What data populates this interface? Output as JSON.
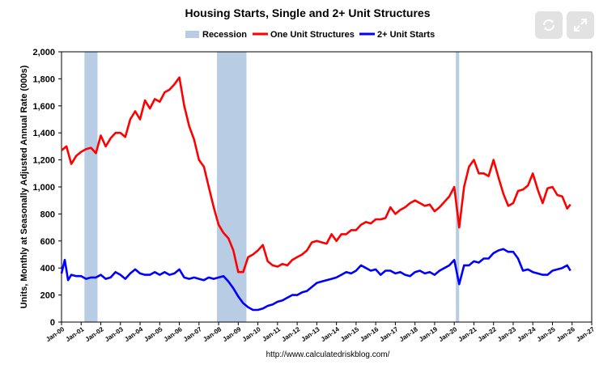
{
  "controls": {
    "refresh_icon": "refresh-icon",
    "expand_icon": "expand-icon"
  },
  "chart_data": {
    "type": "line",
    "title": "Housing Starts, Single and 2+ Unit Structures",
    "ylabel": "Units, Monthly at Seasonally Adjusted Annual Rate (000s)",
    "xlabel": "",
    "footer": "http://www.calculatedriskblog.com/",
    "ylim": [
      0,
      2000
    ],
    "yticks": [
      "0",
      "200",
      "400",
      "600",
      "800",
      "1,000",
      "1,200",
      "1,400",
      "1,600",
      "1,800",
      "2,000"
    ],
    "xticks": [
      "Jan-00",
      "Jan-01",
      "Jan-02",
      "Jan-03",
      "Jan-04",
      "Jan-05",
      "Jan-06",
      "Jan-07",
      "Jan-08",
      "Jan-09",
      "Jan-10",
      "Jan-11",
      "Jan-12",
      "Jan-13",
      "Jan-14",
      "Jan-15",
      "Jan-16",
      "Jan-17",
      "Jan-18",
      "Jan-19",
      "Jan-20",
      "Jan-21",
      "Jan-22",
      "Jan-23",
      "Jan-24",
      "Jan-25",
      "Jan-26",
      "Jan-27"
    ],
    "xlim": [
      "2000-01",
      "2027-01"
    ],
    "grid": false,
    "legend_position": "top",
    "legend": {
      "recession": "Recession",
      "one_unit": "One Unit Structures",
      "multi_unit": "2+ Unit Starts"
    },
    "colors": {
      "one_unit": "#ff0000",
      "multi_unit": "#0000ff",
      "recession": "#b8cce4"
    },
    "recessions": [
      {
        "start": "2001-03",
        "end": "2001-11"
      },
      {
        "start": "2007-12",
        "end": "2009-06"
      },
      {
        "start": "2020-02",
        "end": "2020-04"
      }
    ],
    "series": [
      {
        "key": "one_unit",
        "name": "One Unit Structures",
        "points": [
          [
            "2000-01",
            1270
          ],
          [
            "2000-04",
            1300
          ],
          [
            "2000-07",
            1170
          ],
          [
            "2000-10",
            1230
          ],
          [
            "2001-01",
            1260
          ],
          [
            "2001-04",
            1280
          ],
          [
            "2001-07",
            1290
          ],
          [
            "2001-10",
            1250
          ],
          [
            "2002-01",
            1380
          ],
          [
            "2002-04",
            1300
          ],
          [
            "2002-07",
            1360
          ],
          [
            "2002-10",
            1400
          ],
          [
            "2003-01",
            1400
          ],
          [
            "2003-04",
            1370
          ],
          [
            "2003-07",
            1500
          ],
          [
            "2003-10",
            1560
          ],
          [
            "2004-01",
            1500
          ],
          [
            "2004-04",
            1640
          ],
          [
            "2004-07",
            1580
          ],
          [
            "2004-10",
            1650
          ],
          [
            "2005-01",
            1630
          ],
          [
            "2005-04",
            1700
          ],
          [
            "2005-07",
            1720
          ],
          [
            "2005-10",
            1760
          ],
          [
            "2006-01",
            1810
          ],
          [
            "2006-04",
            1600
          ],
          [
            "2006-07",
            1450
          ],
          [
            "2006-10",
            1350
          ],
          [
            "2007-01",
            1200
          ],
          [
            "2007-04",
            1150
          ],
          [
            "2007-07",
            1000
          ],
          [
            "2007-10",
            850
          ],
          [
            "2008-01",
            720
          ],
          [
            "2008-04",
            660
          ],
          [
            "2008-07",
            620
          ],
          [
            "2008-10",
            530
          ],
          [
            "2009-01",
            370
          ],
          [
            "2009-04",
            370
          ],
          [
            "2009-07",
            480
          ],
          [
            "2009-10",
            500
          ],
          [
            "2010-01",
            530
          ],
          [
            "2010-04",
            570
          ],
          [
            "2010-07",
            450
          ],
          [
            "2010-10",
            420
          ],
          [
            "2011-01",
            410
          ],
          [
            "2011-04",
            430
          ],
          [
            "2011-07",
            420
          ],
          [
            "2011-10",
            460
          ],
          [
            "2012-01",
            480
          ],
          [
            "2012-04",
            500
          ],
          [
            "2012-07",
            530
          ],
          [
            "2012-10",
            590
          ],
          [
            "2013-01",
            600
          ],
          [
            "2013-04",
            590
          ],
          [
            "2013-07",
            580
          ],
          [
            "2013-10",
            650
          ],
          [
            "2014-01",
            600
          ],
          [
            "2014-04",
            650
          ],
          [
            "2014-07",
            650
          ],
          [
            "2014-10",
            680
          ],
          [
            "2015-01",
            680
          ],
          [
            "2015-04",
            720
          ],
          [
            "2015-07",
            740
          ],
          [
            "2015-10",
            730
          ],
          [
            "2016-01",
            760
          ],
          [
            "2016-04",
            760
          ],
          [
            "2016-07",
            770
          ],
          [
            "2016-10",
            850
          ],
          [
            "2017-01",
            800
          ],
          [
            "2017-04",
            830
          ],
          [
            "2017-07",
            850
          ],
          [
            "2017-10",
            880
          ],
          [
            "2018-01",
            900
          ],
          [
            "2018-04",
            880
          ],
          [
            "2018-07",
            860
          ],
          [
            "2018-10",
            870
          ],
          [
            "2019-01",
            820
          ],
          [
            "2019-04",
            850
          ],
          [
            "2019-07",
            890
          ],
          [
            "2019-10",
            930
          ],
          [
            "2020-01",
            1000
          ],
          [
            "2020-04",
            700
          ],
          [
            "2020-07",
            1000
          ],
          [
            "2020-10",
            1150
          ],
          [
            "2021-01",
            1200
          ],
          [
            "2021-04",
            1100
          ],
          [
            "2021-07",
            1100
          ],
          [
            "2021-10",
            1080
          ],
          [
            "2022-01",
            1200
          ],
          [
            "2022-04",
            1070
          ],
          [
            "2022-07",
            950
          ],
          [
            "2022-10",
            860
          ],
          [
            "2023-01",
            880
          ],
          [
            "2023-04",
            970
          ],
          [
            "2023-07",
            980
          ],
          [
            "2023-10",
            1010
          ],
          [
            "2024-01",
            1100
          ],
          [
            "2024-04",
            980
          ],
          [
            "2024-07",
            880
          ],
          [
            "2024-10",
            990
          ],
          [
            "2025-01",
            1000
          ],
          [
            "2025-04",
            940
          ],
          [
            "2025-07",
            930
          ],
          [
            "2025-10",
            840
          ],
          [
            "2025-12",
            870
          ]
        ]
      },
      {
        "key": "multi_unit",
        "name": "2+ Unit Starts",
        "points": [
          [
            "2000-01",
            360
          ],
          [
            "2000-03",
            460
          ],
          [
            "2000-05",
            310
          ],
          [
            "2000-07",
            350
          ],
          [
            "2000-10",
            340
          ],
          [
            "2001-01",
            340
          ],
          [
            "2001-04",
            320
          ],
          [
            "2001-07",
            330
          ],
          [
            "2001-10",
            330
          ],
          [
            "2002-01",
            350
          ],
          [
            "2002-04",
            320
          ],
          [
            "2002-07",
            330
          ],
          [
            "2002-10",
            370
          ],
          [
            "2003-01",
            350
          ],
          [
            "2003-04",
            320
          ],
          [
            "2003-07",
            360
          ],
          [
            "2003-10",
            390
          ],
          [
            "2004-01",
            360
          ],
          [
            "2004-04",
            350
          ],
          [
            "2004-07",
            350
          ],
          [
            "2004-10",
            370
          ],
          [
            "2005-01",
            350
          ],
          [
            "2005-04",
            370
          ],
          [
            "2005-07",
            350
          ],
          [
            "2005-10",
            360
          ],
          [
            "2006-01",
            390
          ],
          [
            "2006-04",
            330
          ],
          [
            "2006-07",
            320
          ],
          [
            "2006-10",
            330
          ],
          [
            "2007-01",
            320
          ],
          [
            "2007-04",
            310
          ],
          [
            "2007-07",
            330
          ],
          [
            "2007-10",
            320
          ],
          [
            "2008-01",
            330
          ],
          [
            "2008-04",
            340
          ],
          [
            "2008-07",
            300
          ],
          [
            "2008-10",
            250
          ],
          [
            "2009-01",
            190
          ],
          [
            "2009-04",
            140
          ],
          [
            "2009-07",
            110
          ],
          [
            "2009-10",
            90
          ],
          [
            "2010-01",
            90
          ],
          [
            "2010-04",
            100
          ],
          [
            "2010-07",
            120
          ],
          [
            "2010-10",
            130
          ],
          [
            "2011-01",
            150
          ],
          [
            "2011-04",
            160
          ],
          [
            "2011-07",
            180
          ],
          [
            "2011-10",
            200
          ],
          [
            "2012-01",
            200
          ],
          [
            "2012-04",
            220
          ],
          [
            "2012-07",
            230
          ],
          [
            "2012-10",
            260
          ],
          [
            "2013-01",
            290
          ],
          [
            "2013-04",
            300
          ],
          [
            "2013-07",
            310
          ],
          [
            "2013-10",
            320
          ],
          [
            "2014-01",
            330
          ],
          [
            "2014-04",
            350
          ],
          [
            "2014-07",
            370
          ],
          [
            "2014-10",
            360
          ],
          [
            "2015-01",
            380
          ],
          [
            "2015-04",
            420
          ],
          [
            "2015-07",
            400
          ],
          [
            "2015-10",
            380
          ],
          [
            "2016-01",
            390
          ],
          [
            "2016-04",
            350
          ],
          [
            "2016-07",
            380
          ],
          [
            "2016-10",
            380
          ],
          [
            "2017-01",
            360
          ],
          [
            "2017-04",
            370
          ],
          [
            "2017-07",
            350
          ],
          [
            "2017-10",
            340
          ],
          [
            "2018-01",
            370
          ],
          [
            "2018-04",
            380
          ],
          [
            "2018-07",
            360
          ],
          [
            "2018-10",
            370
          ],
          [
            "2019-01",
            350
          ],
          [
            "2019-04",
            380
          ],
          [
            "2019-07",
            400
          ],
          [
            "2019-10",
            420
          ],
          [
            "2020-01",
            460
          ],
          [
            "2020-04",
            280
          ],
          [
            "2020-07",
            420
          ],
          [
            "2020-10",
            420
          ],
          [
            "2021-01",
            450
          ],
          [
            "2021-04",
            440
          ],
          [
            "2021-07",
            470
          ],
          [
            "2021-10",
            470
          ],
          [
            "2022-01",
            510
          ],
          [
            "2022-04",
            530
          ],
          [
            "2022-07",
            540
          ],
          [
            "2022-10",
            520
          ],
          [
            "2023-01",
            520
          ],
          [
            "2023-04",
            470
          ],
          [
            "2023-07",
            380
          ],
          [
            "2023-10",
            390
          ],
          [
            "2024-01",
            370
          ],
          [
            "2024-04",
            360
          ],
          [
            "2024-07",
            350
          ],
          [
            "2024-10",
            350
          ],
          [
            "2025-01",
            380
          ],
          [
            "2025-04",
            390
          ],
          [
            "2025-07",
            400
          ],
          [
            "2025-10",
            420
          ],
          [
            "2025-12",
            380
          ]
        ]
      }
    ]
  }
}
